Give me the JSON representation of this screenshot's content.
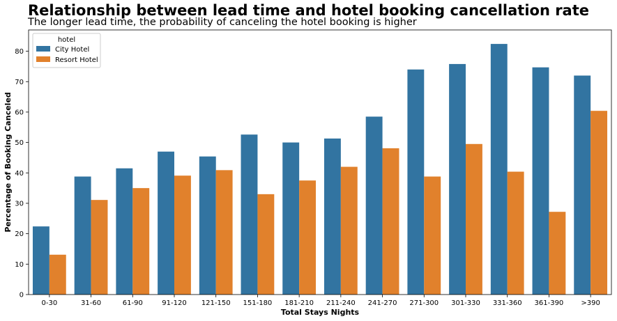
{
  "chart_data": {
    "type": "bar",
    "title": "Relationship between lead time and hotel booking cancellation rate",
    "subtitle": "The longer lead time, the probability of canceling the hotel booking is higher",
    "xlabel": "Total Stays Nights",
    "ylabel": "Percentage of Booking Canceled",
    "categories": [
      "0-30",
      "31-60",
      "61-90",
      "91-120",
      "121-150",
      "151-180",
      "181-210",
      "211-240",
      "241-270",
      "271-300",
      "301-330",
      "331-360",
      "361-390",
      ">390"
    ],
    "ylim": [
      0,
      87
    ],
    "yticks": [
      0,
      10,
      20,
      30,
      40,
      50,
      60,
      70,
      80
    ],
    "grid": false,
    "legend": {
      "title": "hotel",
      "placement": "top-left"
    },
    "series": [
      {
        "name": "City Hotel",
        "color": "#3274a1",
        "values": [
          22.4,
          38.8,
          41.5,
          47.0,
          45.4,
          52.6,
          50.0,
          51.3,
          58.5,
          74.0,
          75.8,
          82.4,
          74.7,
          72.0
        ]
      },
      {
        "name": "Resort Hotel",
        "color": "#e1812c",
        "values": [
          13.1,
          31.1,
          35.0,
          39.1,
          40.9,
          33.0,
          37.5,
          42.0,
          48.1,
          38.8,
          49.5,
          40.4,
          27.2,
          60.4
        ]
      }
    ]
  }
}
